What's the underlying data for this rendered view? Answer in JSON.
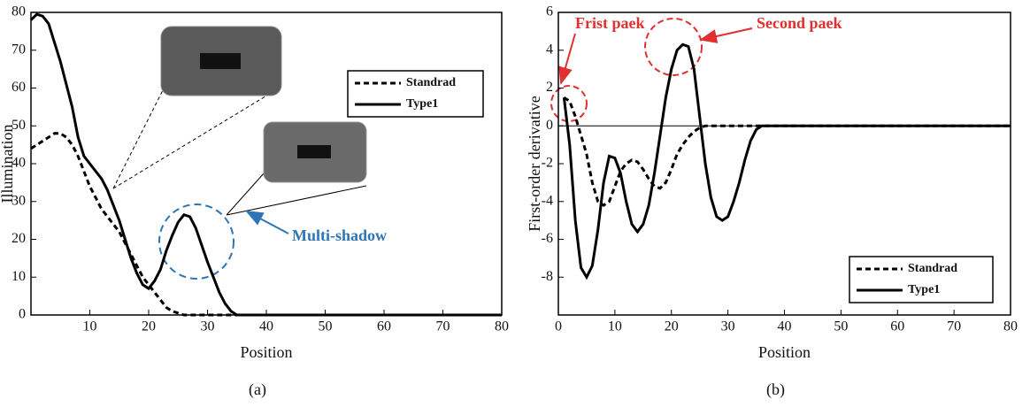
{
  "chart_data": [
    {
      "type": "line",
      "caption": "(a)",
      "xlabel": "Position",
      "ylabel": "Illumination",
      "x": [
        0,
        1,
        2,
        3,
        4,
        5,
        6,
        7,
        8,
        9,
        10,
        11,
        12,
        13,
        14,
        15,
        16,
        17,
        18,
        19,
        20,
        21,
        22,
        23,
        24,
        25,
        26,
        27,
        28,
        29,
        30,
        31,
        32,
        33,
        34,
        35,
        36,
        80
      ],
      "series": [
        {
          "name": "Standrad",
          "color": "#000000",
          "line_style": "dashed",
          "values": [
            44,
            45,
            46,
            47,
            48,
            48,
            47,
            45,
            42,
            38,
            34,
            31,
            28,
            26,
            24,
            22,
            19,
            16,
            13,
            10,
            8,
            6,
            4,
            2,
            1,
            0.5,
            0,
            0,
            0,
            0,
            0,
            0,
            0,
            0,
            0,
            0,
            0,
            0
          ]
        },
        {
          "name": "Type1",
          "color": "#000000",
          "line_style": "solid",
          "values": [
            78,
            79.5,
            79,
            77,
            72,
            67,
            61,
            55,
            47,
            42,
            40,
            38,
            36,
            33,
            29,
            25,
            20,
            15,
            11,
            8,
            7,
            9,
            12,
            17,
            21,
            24.5,
            26.5,
            26,
            23,
            18.5,
            14,
            10,
            6,
            3,
            1,
            0,
            0,
            0
          ]
        }
      ],
      "xlim": [
        0,
        80
      ],
      "ylim": [
        0,
        80
      ],
      "xticks": [
        10,
        20,
        30,
        40,
        50,
        60,
        70,
        80
      ],
      "yticks": [
        0,
        10,
        20,
        30,
        40,
        50,
        60,
        70,
        80
      ],
      "legend": "upper right",
      "annotations": [
        "Multi-shadow"
      ],
      "annotation_color": "#2e75b6"
    },
    {
      "type": "line",
      "caption": "(b)",
      "xlabel": "Position",
      "ylabel": "First-order derivative",
      "x": [
        1,
        2,
        3,
        4,
        5,
        6,
        7,
        8,
        9,
        10,
        11,
        12,
        13,
        14,
        15,
        16,
        17,
        18,
        19,
        20,
        21,
        22,
        23,
        24,
        25,
        26,
        27,
        28,
        29,
        30,
        31,
        32,
        33,
        34,
        35,
        36,
        80
      ],
      "series": [
        {
          "name": "Standrad",
          "color": "#000000",
          "line_style": "dashed",
          "values": [
            1.5,
            1.3,
            0.5,
            -0.5,
            -1.5,
            -3,
            -4,
            -4.2,
            -4,
            -3.2,
            -2.4,
            -2,
            -1.8,
            -1.9,
            -2.3,
            -2.8,
            -3.2,
            -3.3,
            -3,
            -2.3,
            -1.5,
            -1,
            -0.6,
            -0.3,
            -0.1,
            0,
            0,
            0,
            0,
            0,
            0,
            0,
            0,
            0,
            0,
            0,
            0
          ]
        },
        {
          "name": "Type1",
          "color": "#000000",
          "line_style": "solid",
          "values": [
            1.5,
            -1,
            -5,
            -7.5,
            -8,
            -7.4,
            -5.5,
            -3,
            -1.6,
            -1.7,
            -2.5,
            -4,
            -5.2,
            -5.6,
            -5.2,
            -4.2,
            -2.5,
            -0.5,
            1.5,
            3,
            4,
            4.3,
            4.2,
            3,
            0.5,
            -2,
            -3.8,
            -4.8,
            -5,
            -4.8,
            -4,
            -3,
            -1.8,
            -0.8,
            -0.2,
            0,
            0
          ]
        }
      ],
      "xlim": [
        0,
        80
      ],
      "ylim": [
        -10,
        6
      ],
      "xticks": [
        0,
        10,
        20,
        30,
        40,
        50,
        60,
        70,
        80
      ],
      "yticks": [
        -8,
        -6,
        -4,
        -2,
        0,
        2,
        4,
        6
      ],
      "zero_line": true,
      "legend": "lower right",
      "annotations": [
        "Frist paek",
        "Second paek"
      ],
      "annotation_color": "#e03030"
    }
  ]
}
